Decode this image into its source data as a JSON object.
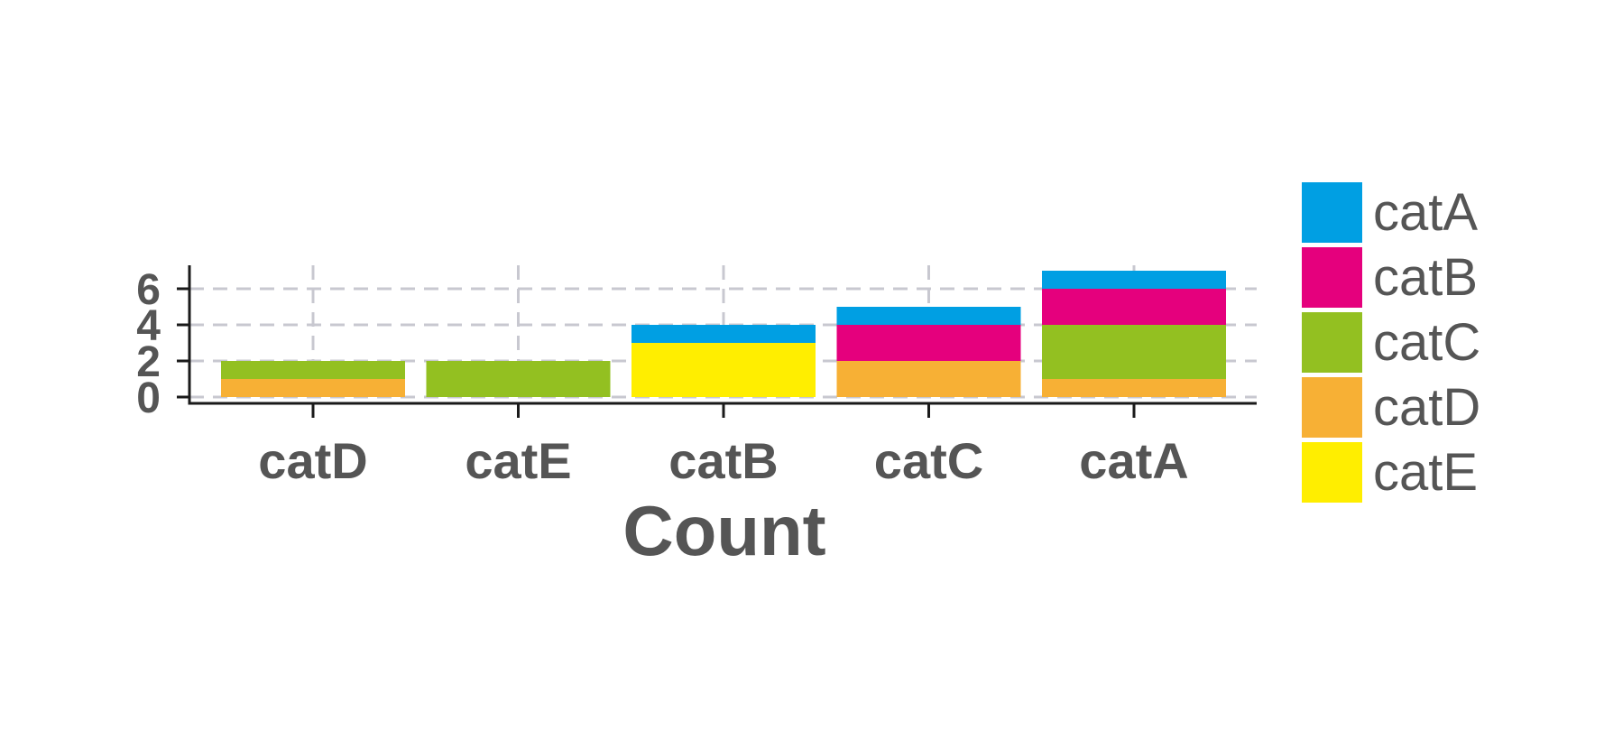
{
  "chart_data": {
    "type": "bar",
    "stacked": true,
    "title": "",
    "xlabel": "Count",
    "ylabel": "",
    "categories": [
      "catD",
      "catE",
      "catB",
      "catC",
      "catA"
    ],
    "yticks": [
      "0",
      "2",
      "4",
      "6"
    ],
    "ylim": [
      0,
      7
    ],
    "grid": true,
    "legend_position": "right",
    "series": [
      {
        "name": "catE",
        "color": "#FFEE00",
        "values": [
          0,
          0,
          3,
          0,
          0
        ]
      },
      {
        "name": "catD",
        "color": "#F7B035",
        "values": [
          1,
          0,
          0,
          2,
          1
        ]
      },
      {
        "name": "catC",
        "color": "#93C021",
        "values": [
          1,
          2,
          0,
          0,
          3
        ]
      },
      {
        "name": "catB",
        "color": "#E5007D",
        "values": [
          0,
          0,
          0,
          2,
          2
        ]
      },
      {
        "name": "catA",
        "color": "#009FE3",
        "values": [
          0,
          0,
          1,
          1,
          1
        ]
      }
    ],
    "legend_order": [
      "catA",
      "catB",
      "catC",
      "catD",
      "catE"
    ]
  }
}
